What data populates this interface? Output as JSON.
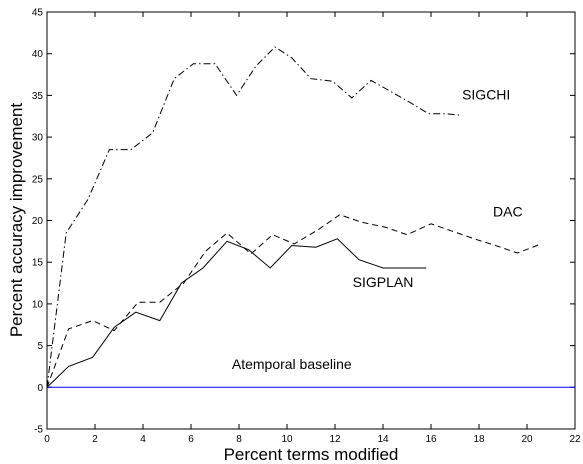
{
  "chart_data": {
    "type": "line",
    "title": "",
    "xlabel": "Percent terms modified",
    "ylabel": "Percent accuracy improvement",
    "xlim": [
      0,
      22
    ],
    "ylim": [
      -5,
      45
    ],
    "x_ticks": [
      0,
      2,
      4,
      6,
      8,
      10,
      12,
      14,
      16,
      18,
      20,
      22
    ],
    "y_ticks": [
      -5,
      0,
      5,
      10,
      15,
      20,
      25,
      30,
      35,
      40,
      45
    ],
    "grid": false,
    "legend": "none",
    "series": [
      {
        "name": "SIGCHI",
        "style": "dash-dot",
        "color": "#000000",
        "x": [
          0,
          0.8,
          1.7,
          2.6,
          3.5,
          4.4,
          5.3,
          6.1,
          7.0,
          7.9,
          8.7,
          9.5,
          10.2,
          11.0,
          11.9,
          12.7,
          13.5,
          14.3,
          15.1,
          15.9,
          16.6,
          17.3
        ],
        "y": [
          0,
          18.5,
          22.5,
          28.5,
          28.5,
          30.5,
          37,
          38.8,
          38.8,
          35,
          38.5,
          40.8,
          39.5,
          37,
          36.7,
          34.7,
          36.8,
          35.5,
          34.2,
          32.8,
          32.8,
          32.6
        ]
      },
      {
        "name": "DAC",
        "style": "dashed",
        "color": "#000000",
        "x": [
          0,
          0.9,
          1.9,
          2.8,
          3.8,
          4.7,
          5.7,
          6.6,
          7.5,
          8.5,
          9.4,
          10.3,
          11.3,
          12.2,
          13.1,
          14.1,
          15.0,
          16.0,
          16.9,
          17.8,
          18.8,
          19.6,
          20.6
        ],
        "y": [
          0,
          7,
          8,
          6.8,
          10.2,
          10.2,
          12.5,
          16.3,
          18.5,
          16.0,
          18.3,
          17.2,
          18.9,
          20.7,
          19.8,
          19.2,
          18.3,
          19.6,
          18.7,
          17.8,
          16.9,
          16.1,
          17.2
        ]
      },
      {
        "name": "SIGPLAN",
        "style": "solid",
        "color": "#000000",
        "x": [
          0,
          0.9,
          1.9,
          2.8,
          3.7,
          4.7,
          5.6,
          6.5,
          7.5,
          8.4,
          9.3,
          10.2,
          11.2,
          12.1,
          13.0,
          14.0,
          14.9,
          15.8
        ],
        "y": [
          0,
          2.5,
          3.6,
          7.2,
          9.0,
          8.0,
          12.5,
          14.3,
          17.5,
          16.5,
          14.3,
          17.0,
          16.8,
          17.8,
          15.3,
          14.3,
          14.3,
          14.3
        ]
      },
      {
        "name": "Atemporal baseline",
        "style": "solid",
        "color": "#0000ff",
        "x": [
          0,
          22
        ],
        "y": [
          0,
          0
        ]
      }
    ],
    "annotations": [
      {
        "text": "SIGCHI",
        "x": 18.3,
        "y": 34.5
      },
      {
        "text": "DAC",
        "x": 19.2,
        "y": 20.5
      },
      {
        "text": "SIGPLAN",
        "x": 14.0,
        "y": 12.0
      },
      {
        "text": "Atemporal baseline",
        "x": 10.2,
        "y": 2.2
      }
    ]
  }
}
